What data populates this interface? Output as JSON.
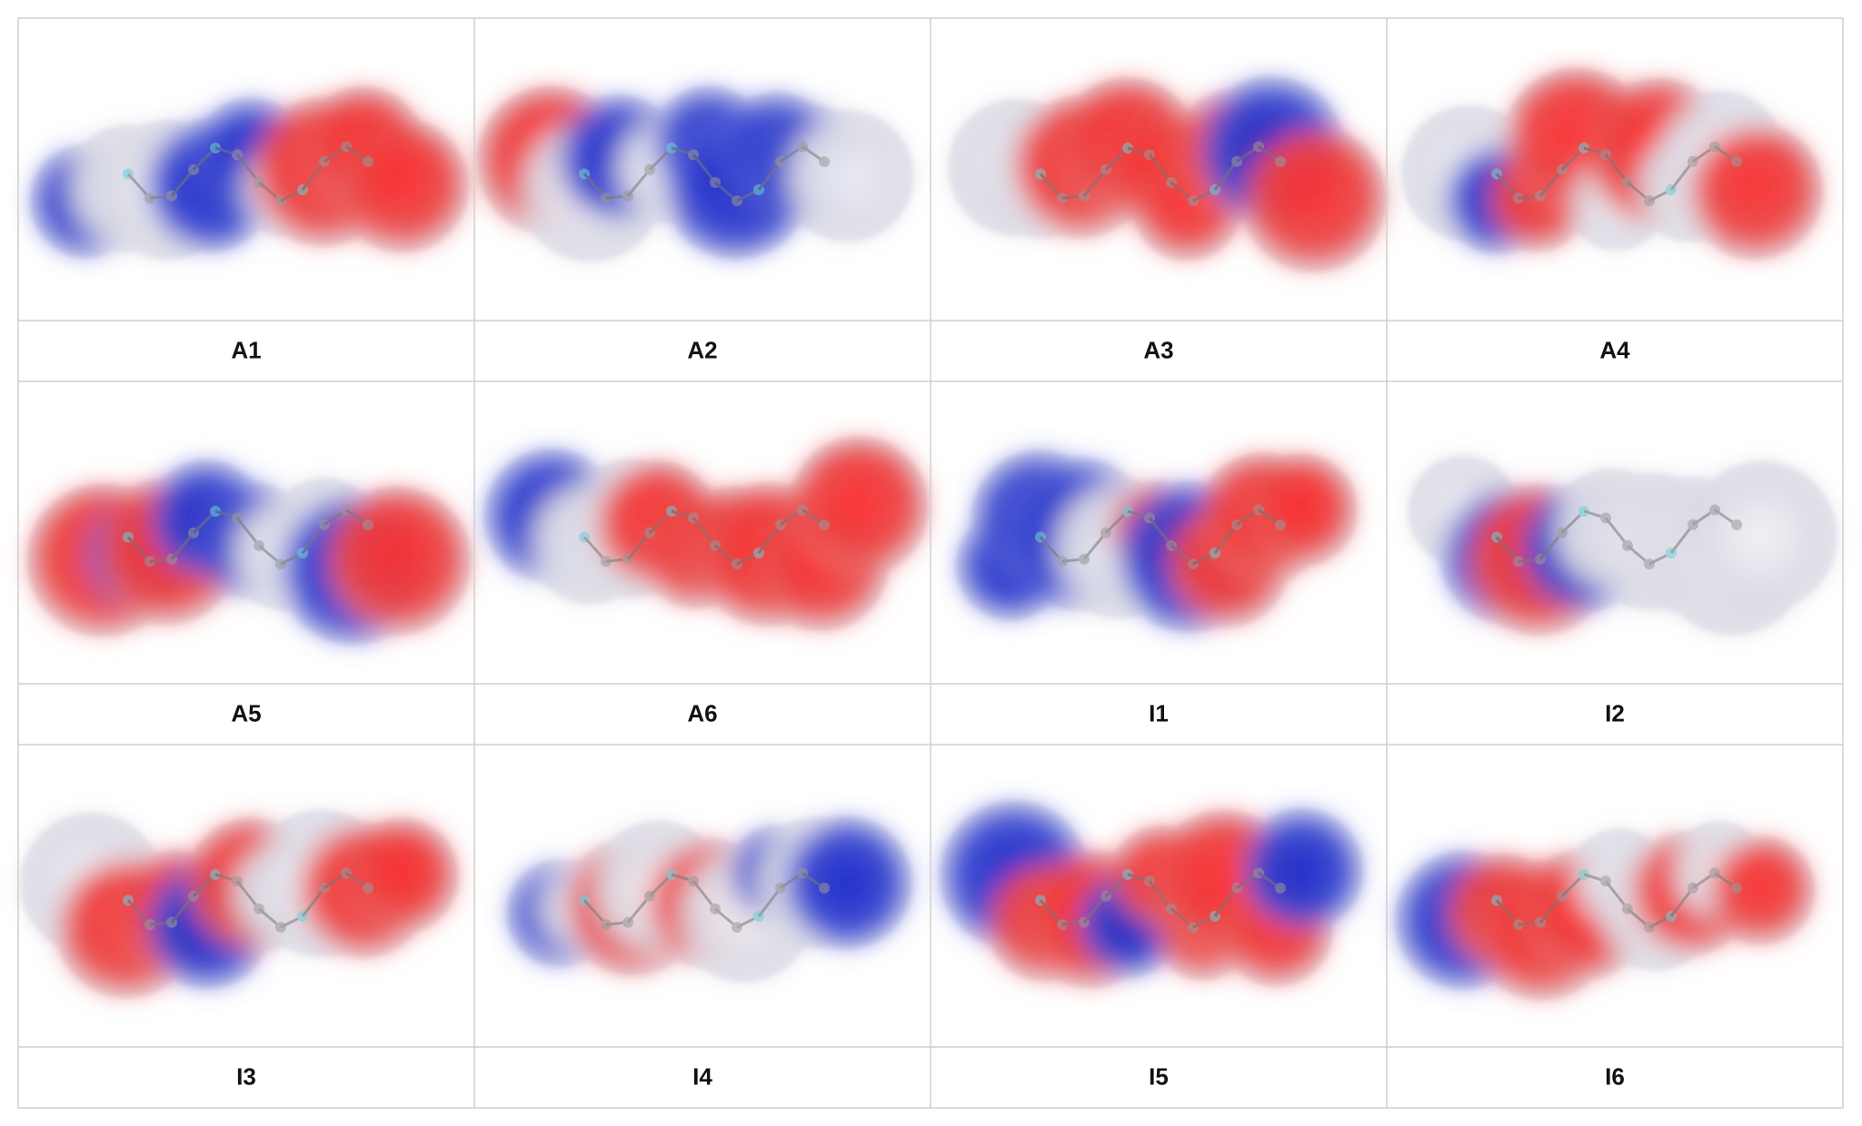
{
  "panels": [
    {
      "label": "A1"
    },
    {
      "label": "A2"
    },
    {
      "label": "A3"
    },
    {
      "label": "A4"
    },
    {
      "label": "A5"
    },
    {
      "label": "A6"
    },
    {
      "label": "I1"
    },
    {
      "label": "I2"
    },
    {
      "label": "I3"
    },
    {
      "label": "I4"
    },
    {
      "label": "I5"
    },
    {
      "label": "I6"
    }
  ]
}
